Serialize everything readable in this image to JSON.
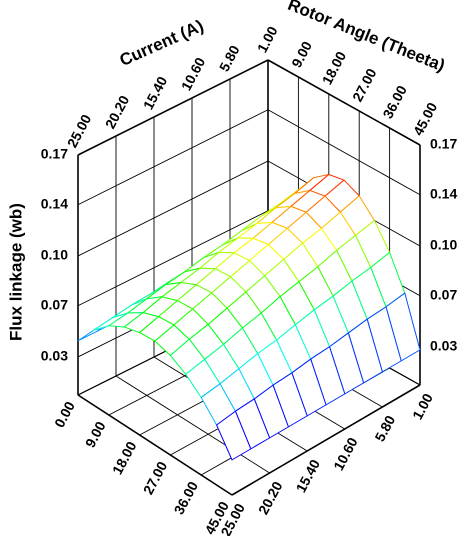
{
  "chart_data": {
    "type": "surface3d",
    "x_label": "Current (A)",
    "y_label": "Rotor Angle (Theeta)",
    "z_label": "Flux linkage (wb)",
    "x": [
      1,
      3.4,
      5.8,
      8.2,
      10.6,
      13,
      15.4,
      17.8,
      20.2,
      22.6,
      25
    ],
    "y": [
      0,
      4.5,
      9,
      13.5,
      18,
      22.5,
      27,
      31.5,
      36,
      40.5,
      45
    ],
    "z": [
      [
        0.045,
        0.045,
        0.045,
        0.045,
        0.045,
        0.045,
        0.045,
        0.045,
        0.045,
        0.045,
        0.045
      ],
      [
        0.075,
        0.073,
        0.072,
        0.07,
        0.069,
        0.067,
        0.066,
        0.064,
        0.063,
        0.061,
        0.059
      ],
      [
        0.095,
        0.092,
        0.09,
        0.087,
        0.084,
        0.082,
        0.079,
        0.077,
        0.074,
        0.071,
        0.069
      ],
      [
        0.109,
        0.105,
        0.102,
        0.098,
        0.095,
        0.092,
        0.088,
        0.085,
        0.082,
        0.078,
        0.075
      ],
      [
        0.117,
        0.113,
        0.109,
        0.105,
        0.101,
        0.098,
        0.094,
        0.09,
        0.086,
        0.082,
        0.078
      ],
      [
        0.119,
        0.115,
        0.111,
        0.107,
        0.103,
        0.099,
        0.095,
        0.091,
        0.087,
        0.083,
        0.079
      ],
      [
        0.114,
        0.11,
        0.106,
        0.103,
        0.099,
        0.095,
        0.091,
        0.087,
        0.083,
        0.08,
        0.076
      ],
      [
        0.103,
        0.1,
        0.097,
        0.093,
        0.09,
        0.087,
        0.083,
        0.08,
        0.076,
        0.073,
        0.07
      ],
      [
        0.087,
        0.084,
        0.082,
        0.079,
        0.077,
        0.074,
        0.071,
        0.069,
        0.066,
        0.063,
        0.061
      ],
      [
        0.065,
        0.063,
        0.062,
        0.06,
        0.058,
        0.057,
        0.055,
        0.054,
        0.052,
        0.051,
        0.049
      ],
      [
        0.032,
        0.032,
        0.032,
        0.032,
        0.032,
        0.032,
        0.032,
        0.032,
        0.032,
        0.032,
        0.032
      ]
    ],
    "xlim": [
      1,
      25
    ],
    "xticks": [
      {
        "value": 1,
        "label": "1.00"
      },
      {
        "value": 5.8,
        "label": "5.80"
      },
      {
        "value": 10.6,
        "label": "10.60"
      },
      {
        "value": 15.4,
        "label": "15.40"
      },
      {
        "value": 20.2,
        "label": "20.20"
      },
      {
        "value": 25,
        "label": "25.00"
      }
    ],
    "ylim": [
      0,
      45
    ],
    "yticks": [
      {
        "value": 0,
        "label": "0.00"
      },
      {
        "value": 9,
        "label": "9.00"
      },
      {
        "value": 18,
        "label": "18.00"
      },
      {
        "value": 27,
        "label": "27.00"
      },
      {
        "value": 36,
        "label": "36.00"
      },
      {
        "value": 45,
        "label": "45.00"
      }
    ],
    "zlim": [
      0.008,
      0.172
    ],
    "zticks": [
      {
        "value": 0.034,
        "label": "0.03"
      },
      {
        "value": 0.069,
        "label": "0.07"
      },
      {
        "value": 0.103,
        "label": "0.10"
      },
      {
        "value": 0.138,
        "label": "0.14"
      },
      {
        "value": 0.172,
        "label": "0.17"
      }
    ],
    "grid": true,
    "colormap": "rainbow"
  }
}
